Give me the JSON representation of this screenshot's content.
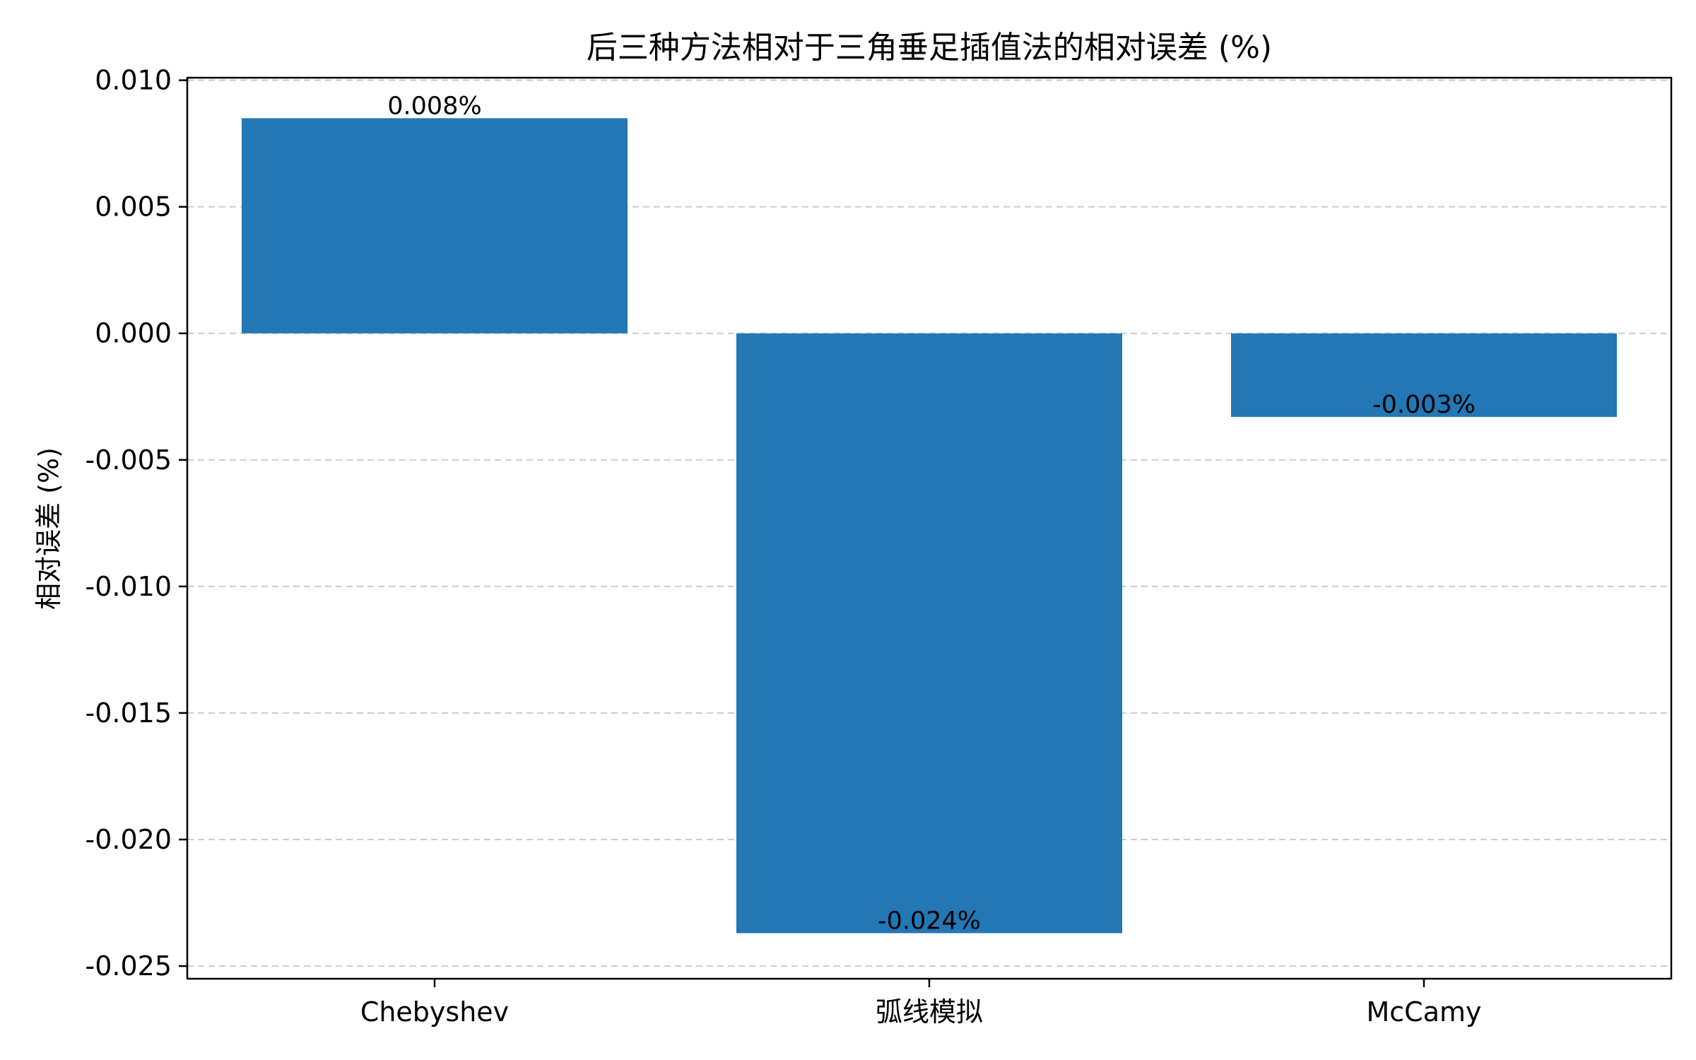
{
  "chart_data": {
    "type": "bar",
    "title": "后三种方法相对于三角垂足插值法的相对误差 (%)",
    "xlabel": "",
    "ylabel": "相对误差 (%)",
    "categories": [
      "Chebyshev",
      "弧线模拟",
      "McCamy"
    ],
    "values": [
      0.0085,
      -0.0237,
      -0.0033
    ],
    "data_labels": [
      "0.008%",
      "-0.024%",
      "-0.003%"
    ],
    "ylim": [
      -0.0255,
      0.0101
    ],
    "yticks": [
      0.01,
      0.005,
      0.0,
      -0.005,
      -0.01,
      -0.015,
      -0.02,
      -0.025
    ],
    "ytick_labels": [
      "0.010",
      "0.005",
      "0.000",
      "-0.005",
      "-0.010",
      "-0.015",
      "-0.020",
      "-0.025"
    ],
    "grid": "y, dashed",
    "legend": "none",
    "colors": {
      "bar": "#2277b4",
      "grid": "#cccccc",
      "axis": "#000000"
    }
  }
}
